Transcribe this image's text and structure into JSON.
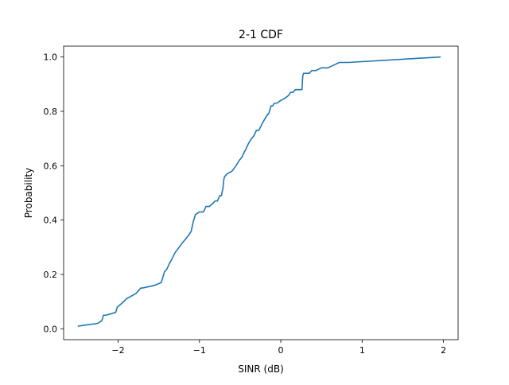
{
  "chart_data": {
    "type": "line",
    "title": "2-1 CDF",
    "xlabel": "SINR (dB)",
    "ylabel": "Probability",
    "xlim": [
      -2.67,
      2.18
    ],
    "ylim": [
      -0.04,
      1.04
    ],
    "xticks": [
      -2,
      -1,
      0,
      1,
      2
    ],
    "yticks": [
      0.0,
      0.2,
      0.4,
      0.6,
      0.8,
      1.0
    ],
    "xtick_labels": [
      "−2",
      "−1",
      "0",
      "1",
      "2"
    ],
    "ytick_labels": [
      "0.0",
      "0.2",
      "0.4",
      "0.6",
      "0.8",
      "1.0"
    ],
    "grid": false,
    "legend": "none",
    "series": [
      {
        "color": "#1f77b4",
        "x": [
          -2.49,
          -2.25,
          -2.2,
          -2.18,
          -2.15,
          -2.03,
          -2.01,
          -1.97,
          -1.93,
          -1.9,
          -1.78,
          -1.72,
          -1.7,
          -1.55,
          -1.47,
          -1.45,
          -1.43,
          -1.4,
          -1.37,
          -1.35,
          -1.3,
          -1.25,
          -1.2,
          -1.17,
          -1.12,
          -1.1,
          -1.08,
          -1.06,
          -1.05,
          -1.0,
          -0.95,
          -0.92,
          -0.9,
          -0.88,
          -0.84,
          -0.81,
          -0.78,
          -0.75,
          -0.73,
          -0.71,
          -0.7,
          -0.69,
          -0.66,
          -0.6,
          -0.55,
          -0.51,
          -0.48,
          -0.45,
          -0.43,
          -0.4,
          -0.36,
          -0.33,
          -0.3,
          -0.27,
          -0.22,
          -0.18,
          -0.16,
          -0.15,
          -0.12,
          -0.1,
          -0.08,
          -0.06,
          -0.05,
          0.0,
          0.06,
          0.1,
          0.12,
          0.15,
          0.18,
          0.23,
          0.26,
          0.27,
          0.28,
          0.32,
          0.35,
          0.38,
          0.43,
          0.5,
          0.58,
          0.65,
          0.72,
          0.83,
          1.96
        ],
        "y": [
          0.01,
          0.02,
          0.03,
          0.05,
          0.05,
          0.06,
          0.08,
          0.09,
          0.1,
          0.11,
          0.13,
          0.15,
          0.15,
          0.16,
          0.17,
          0.19,
          0.21,
          0.22,
          0.24,
          0.25,
          0.28,
          0.3,
          0.32,
          0.33,
          0.35,
          0.36,
          0.39,
          0.41,
          0.42,
          0.43,
          0.43,
          0.45,
          0.45,
          0.45,
          0.46,
          0.47,
          0.47,
          0.49,
          0.49,
          0.52,
          0.55,
          0.56,
          0.57,
          0.58,
          0.6,
          0.62,
          0.63,
          0.65,
          0.66,
          0.68,
          0.7,
          0.71,
          0.73,
          0.73,
          0.76,
          0.78,
          0.79,
          0.79,
          0.82,
          0.82,
          0.83,
          0.83,
          0.83,
          0.84,
          0.85,
          0.86,
          0.87,
          0.87,
          0.88,
          0.88,
          0.88,
          0.93,
          0.94,
          0.94,
          0.94,
          0.95,
          0.95,
          0.96,
          0.96,
          0.97,
          0.98,
          0.98,
          1.0
        ]
      }
    ]
  }
}
